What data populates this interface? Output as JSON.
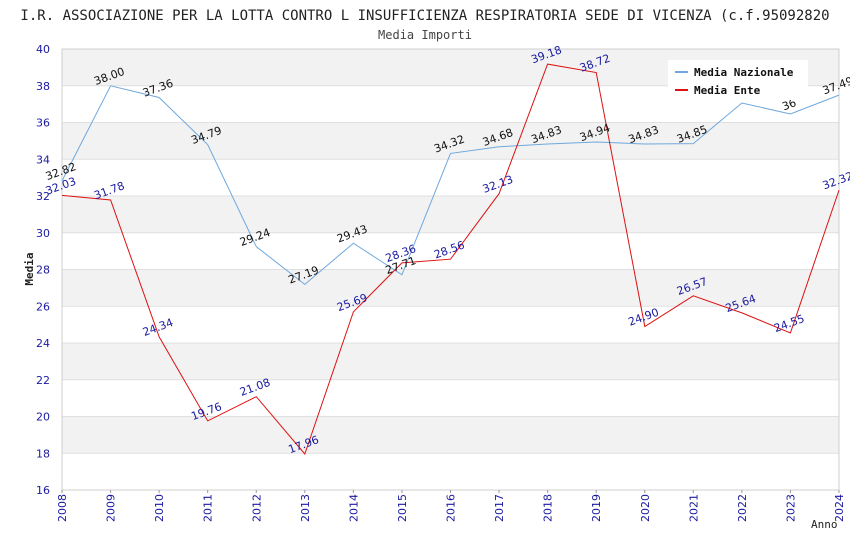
{
  "chart_data": {
    "type": "line",
    "title": "I.R. ASSOCIAZIONE PER LA LOTTA CONTRO L INSUFFICIENZA RESPIRATORIA SEDE DI VICENZA (c.f.95092820",
    "subtitle": "Media Importi",
    "xlabel": "Anno",
    "ylabel": "Media",
    "ylim": [
      16,
      40
    ],
    "yticks": [
      16,
      18,
      20,
      22,
      24,
      26,
      28,
      30,
      32,
      34,
      36,
      38,
      40
    ],
    "x": [
      "2008",
      "2009",
      "2010",
      "2011",
      "2012",
      "2013",
      "2014",
      "2015",
      "2016",
      "2017",
      "2018",
      "2019",
      "2020",
      "2021",
      "2022",
      "2023",
      "2024"
    ],
    "legend_position": "top-right",
    "series": [
      {
        "name": "Media Nazionale",
        "color": "#6fa8dc",
        "values": [
          32.82,
          38.0,
          37.36,
          34.79,
          29.24,
          27.19,
          29.43,
          27.71,
          34.32,
          34.68,
          34.83,
          34.94,
          34.83,
          34.85,
          37.06,
          36.46,
          37.49
        ],
        "labels": [
          "32.82",
          "38.00",
          "37.36",
          "34.79",
          "29.24",
          "27.19",
          "29.43",
          "27.71",
          "34.32",
          "34.68",
          "34.83",
          "34.94",
          "34.83",
          "34.85",
          "",
          "36",
          "37.49"
        ]
      },
      {
        "name": "Media Ente",
        "color": "#dd1111",
        "values": [
          32.03,
          31.78,
          24.34,
          19.76,
          21.08,
          17.96,
          25.69,
          28.36,
          28.56,
          32.13,
          39.18,
          38.72,
          24.9,
          26.57,
          25.64,
          24.55,
          32.32
        ],
        "labels": [
          "32.03",
          "31.78",
          "24.34",
          "19.76",
          "21.08",
          "17.96",
          "25.69",
          "28.36",
          "28.56",
          "32.13",
          "39.18",
          "38.72",
          "24.90",
          "26.57",
          "25.64",
          "24.55",
          "32.32"
        ]
      }
    ]
  }
}
